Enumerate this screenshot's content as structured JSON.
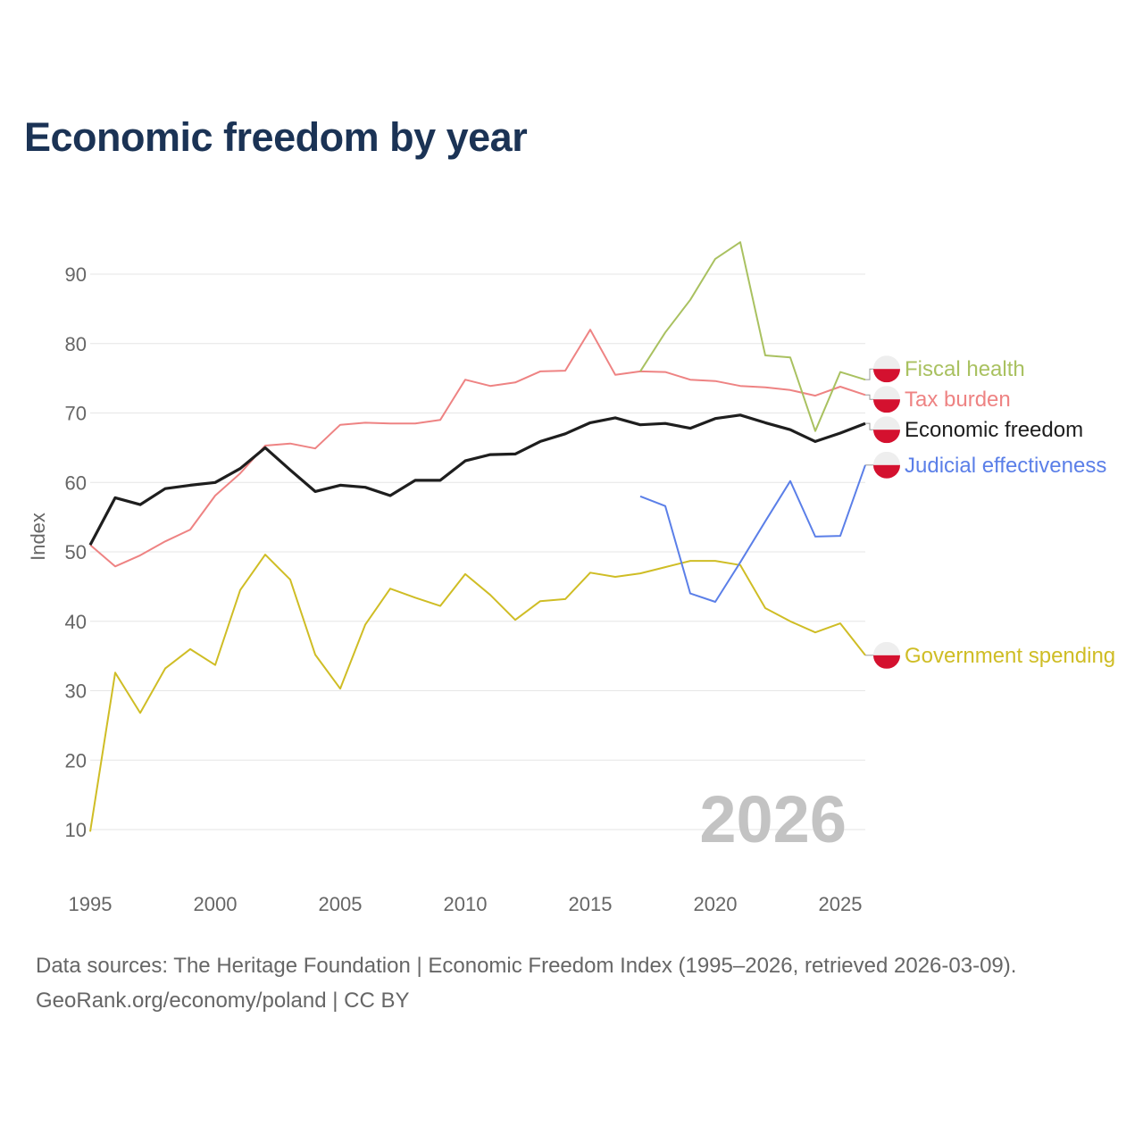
{
  "title": "Economic freedom by year",
  "year_watermark": "2026",
  "footer": {
    "line1": "Data sources: The Heritage Foundation | Economic Freedom Index (1995–2026, retrieved 2026-03-09).",
    "line2": "GeoRank.org/economy/poland | CC BY"
  },
  "chart_data": {
    "type": "line",
    "title": "Economic freedom by year",
    "xlabel": "",
    "ylabel": "Index",
    "xlim": [
      1995,
      2026
    ],
    "ylim": [
      0,
      98
    ],
    "xticks": [
      1995,
      2000,
      2005,
      2010,
      2015,
      2020,
      2025
    ],
    "yticks": [
      10,
      20,
      30,
      40,
      50,
      60,
      70,
      80,
      90
    ],
    "grid": true,
    "legend": "right, end-of-line labels with Poland flag markers",
    "series": [
      {
        "name": "Fiscal health",
        "color": "#a9c160",
        "width": 2,
        "x": [
          2017,
          2018,
          2019,
          2020,
          2021,
          2022,
          2023,
          2024,
          2025,
          2026
        ],
        "values": [
          76.0,
          81.6,
          86.3,
          92.2,
          94.6,
          78.3,
          78.0,
          67.4,
          75.9,
          74.8
        ]
      },
      {
        "name": "Tax burden",
        "color": "#ee8383",
        "width": 2,
        "x": [
          1995,
          1996,
          1997,
          1998,
          1999,
          2000,
          2001,
          2002,
          2003,
          2004,
          2005,
          2006,
          2007,
          2008,
          2009,
          2010,
          2011,
          2012,
          2013,
          2014,
          2015,
          2016,
          2017,
          2018,
          2019,
          2020,
          2021,
          2022,
          2023,
          2024,
          2025,
          2026
        ],
        "values": [
          51.0,
          47.9,
          49.5,
          51.5,
          53.2,
          58.1,
          61.3,
          65.3,
          65.6,
          64.9,
          68.3,
          68.6,
          68.5,
          68.5,
          69.0,
          74.8,
          73.9,
          74.4,
          76.0,
          76.1,
          82.0,
          75.5,
          76.0,
          75.9,
          74.8,
          74.6,
          73.9,
          73.7,
          73.3,
          72.5,
          73.8,
          72.6
        ]
      },
      {
        "name": "Economic freedom",
        "color": "#1e1e1e",
        "width": 3.2,
        "x": [
          1995,
          1996,
          1997,
          1998,
          1999,
          2000,
          2001,
          2002,
          2003,
          2004,
          2005,
          2006,
          2007,
          2008,
          2009,
          2010,
          2011,
          2012,
          2013,
          2014,
          2015,
          2016,
          2017,
          2018,
          2019,
          2020,
          2021,
          2022,
          2023,
          2024,
          2025,
          2026
        ],
        "values": [
          51.0,
          57.8,
          56.8,
          59.1,
          59.6,
          60.0,
          62.0,
          65.0,
          61.8,
          58.7,
          59.6,
          59.3,
          58.1,
          60.3,
          60.3,
          63.1,
          64.0,
          64.1,
          65.9,
          67.0,
          68.6,
          69.3,
          68.3,
          68.5,
          67.8,
          69.2,
          69.7,
          68.6,
          67.6,
          65.9,
          67.1,
          68.5
        ]
      },
      {
        "name": "Judicial effectiveness",
        "color": "#5b7fe8",
        "width": 2,
        "x": [
          2017,
          2018,
          2019,
          2020,
          2021,
          2022,
          2023,
          2024,
          2025,
          2026
        ],
        "values": [
          58.0,
          56.6,
          44.0,
          42.8,
          48.5,
          54.4,
          60.2,
          52.2,
          52.3,
          62.5
        ]
      },
      {
        "name": "Government spending",
        "color": "#cfbd25",
        "width": 2,
        "x": [
          1995,
          1996,
          1997,
          1998,
          1999,
          2000,
          2001,
          2002,
          2003,
          2004,
          2005,
          2006,
          2007,
          2008,
          2009,
          2010,
          2011,
          2012,
          2013,
          2014,
          2015,
          2016,
          2017,
          2018,
          2019,
          2020,
          2021,
          2022,
          2023,
          2024,
          2025,
          2026
        ],
        "values": [
          9.7,
          32.6,
          26.8,
          33.2,
          36.0,
          33.7,
          44.5,
          49.6,
          46.0,
          35.2,
          30.3,
          39.5,
          44.7,
          43.4,
          42.2,
          46.8,
          43.8,
          40.2,
          42.9,
          43.2,
          47.0,
          46.4,
          46.9,
          47.8,
          48.7,
          48.7,
          48.1,
          41.9,
          40.0,
          38.4,
          39.7,
          35.1
        ]
      }
    ]
  }
}
